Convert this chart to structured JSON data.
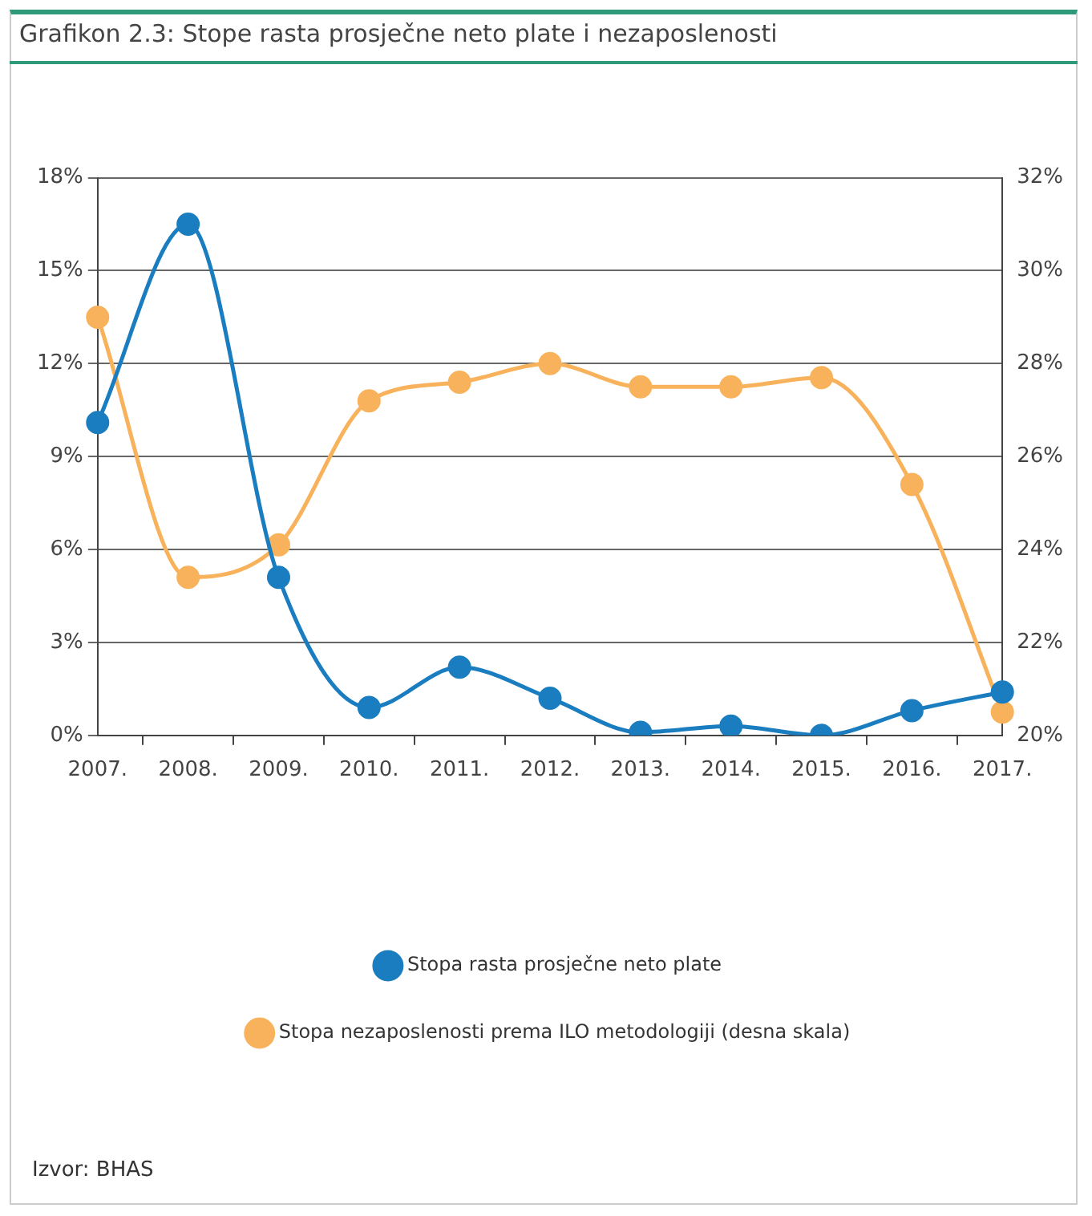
{
  "chart_data": {
    "type": "line",
    "title": "Grafikon 2.3: Stope rasta prosječne neto plate i nezaposlenosti",
    "categories": [
      "2007.",
      "2008.",
      "2009.",
      "2010.",
      "2011.",
      "2012.",
      "2013.",
      "2014.",
      "2015.",
      "2016.",
      "2017."
    ],
    "series": [
      {
        "name": "Stopa rasta prosječne neto plate",
        "color": "#1a7dc0",
        "values": [
          10.1,
          16.5,
          5.1,
          0.9,
          2.2,
          1.2,
          0.1,
          0.3,
          0.0,
          0.8,
          1.4
        ]
      },
      {
        "name": "Stopa nezaposlenosti prema ILO metodologiji (desna skala)",
        "color": "#f9b25c",
        "axis": "y2",
        "values": [
          29.0,
          23.4,
          24.1,
          27.2,
          27.6,
          28.0,
          27.5,
          27.5,
          27.7,
          25.4,
          20.5
        ]
      }
    ],
    "ylim": [
      0,
      18
    ],
    "yticks": [
      {
        "value": 0,
        "label": "0%"
      },
      {
        "value": 3,
        "label": "3%"
      },
      {
        "value": 6,
        "label": "6%"
      },
      {
        "value": 9,
        "label": "9%"
      },
      {
        "value": 12,
        "label": "12%"
      },
      {
        "value": 15,
        "label": "15%"
      },
      {
        "value": 18,
        "label": "18%"
      }
    ],
    "y2lim": [
      20,
      32
    ],
    "y2ticks": [
      {
        "value": 20,
        "label": "20%"
      },
      {
        "value": 22,
        "label": "22%"
      },
      {
        "value": 24,
        "label": "24%"
      },
      {
        "value": 26,
        "label": "26%"
      },
      {
        "value": 28,
        "label": "28%"
      },
      {
        "value": 30,
        "label": "30%"
      },
      {
        "value": 32,
        "label": "32%"
      }
    ],
    "grid": "y",
    "legend": "bottom",
    "marker": "circle",
    "line_style": "solid",
    "annotations": [
      "Izvor: BHAS"
    ]
  }
}
